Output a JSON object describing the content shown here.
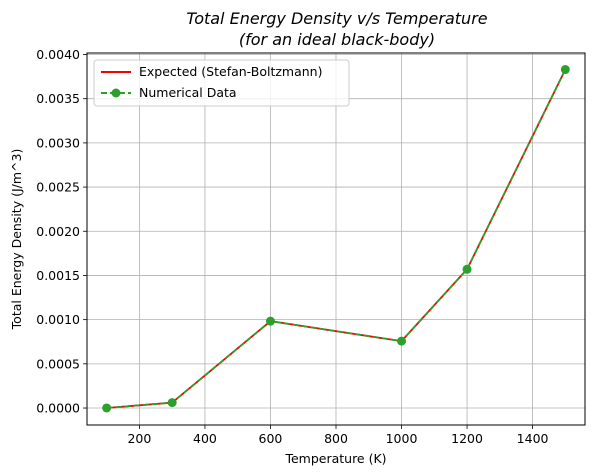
{
  "chart_data": {
    "type": "line",
    "title": [
      "Total Energy Density v/s Temperature",
      "(for an ideal black-body)"
    ],
    "title_color": "#1f77b4",
    "xlabel": "Temperature (K)",
    "ylabel": "Total Energy Density (J/m^3)",
    "xlim": [
      40,
      1560
    ],
    "ylim": [
      -0.000192,
      0.004017
    ],
    "x_ticks": [
      200,
      400,
      600,
      800,
      1000,
      1200,
      1400
    ],
    "x_tick_labels": [
      "200",
      "400",
      "600",
      "800",
      "1000",
      "1200",
      "1400"
    ],
    "y_ticks": [
      0,
      0.0005,
      0.001,
      0.0015,
      0.002,
      0.0025,
      0.003,
      0.0035,
      0.004
    ],
    "y_tick_labels": [
      "0.0000",
      "0.0005",
      "0.0010",
      "0.0015",
      "0.0020",
      "0.0025",
      "0.0030",
      "0.0035",
      "0.0040"
    ],
    "grid": true,
    "legend_position": "top-left",
    "series": [
      {
        "name": "Expected (Stefan-Boltzmann)",
        "style": "solid",
        "marker": "none",
        "color": "#ff0000",
        "x": [
          100,
          300,
          600,
          1000,
          1200,
          1500
        ],
        "y": [
          8e-07,
          6.13e-05,
          0.000983,
          0.000757,
          0.00157,
          0.00383
        ]
      },
      {
        "name": "Numerical Data",
        "style": "dashed",
        "marker": "circle",
        "color": "#2ca02c",
        "x": [
          100,
          300,
          600,
          1000,
          1200,
          1500
        ],
        "y": [
          8e-07,
          6.13e-05,
          0.000983,
          0.000757,
          0.00157,
          0.00383
        ]
      }
    ]
  }
}
